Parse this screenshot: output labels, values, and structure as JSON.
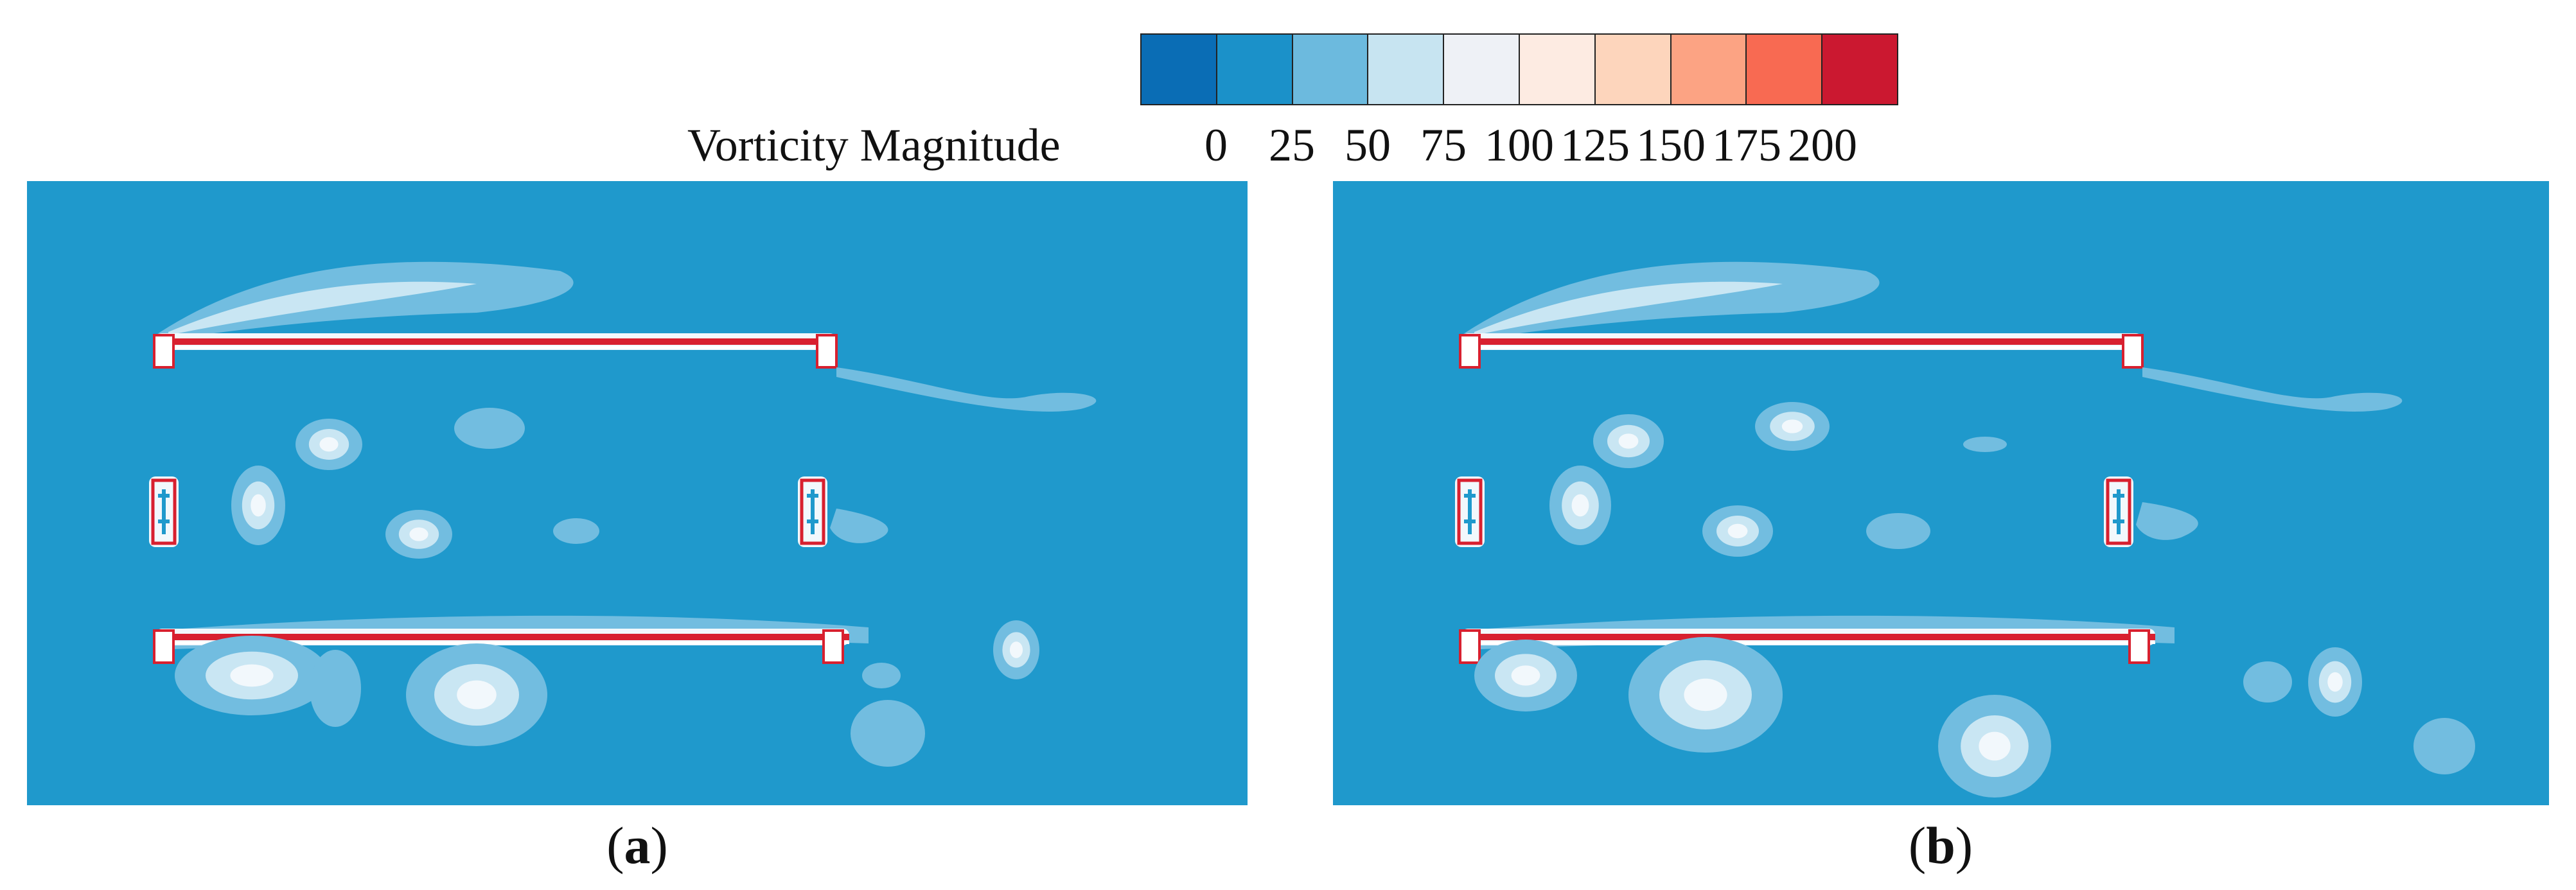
{
  "legend": {
    "title": "Vorticity Magnitude",
    "levels": [
      "0",
      "25",
      "50",
      "75",
      "100",
      "125",
      "150",
      "175",
      "200"
    ],
    "colors": [
      "#0a6db5",
      "#1b91c9",
      "#6cbade",
      "#c7e4f1",
      "#eef1f6",
      "#fdebe2",
      "#fdd5bc",
      "#fca383",
      "#f86a52",
      "#cb1830"
    ]
  },
  "panels": [
    {
      "caption_open": "(",
      "caption_letter": "a",
      "caption_close": ")"
    },
    {
      "caption_open": "(",
      "caption_letter": "b",
      "caption_close": ")"
    }
  ],
  "colors": {
    "background": "#1f99cc",
    "contour_light": "#72bde0",
    "contour_pale": "#c9e6f3",
    "contour_white": "#f2f8fc",
    "high": "#d8202f"
  }
}
